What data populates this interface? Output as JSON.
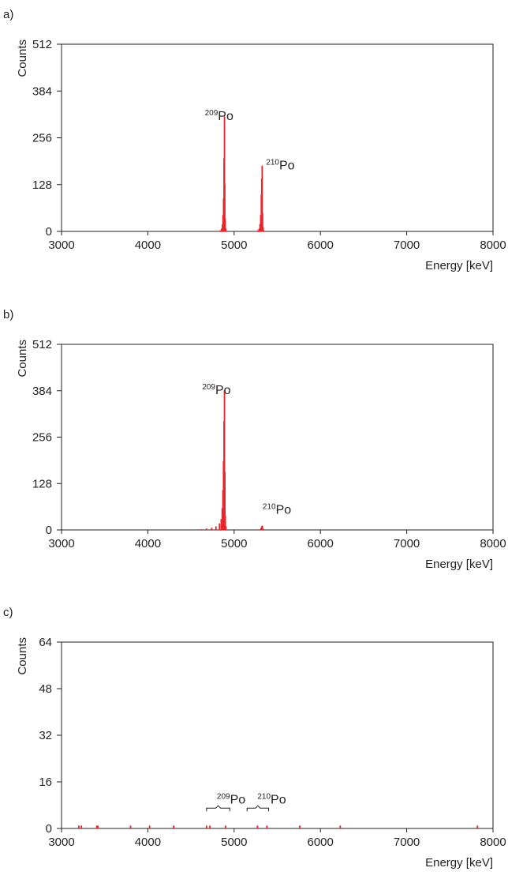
{
  "colors": {
    "peak": "#e8262b",
    "axis": "#231f20"
  },
  "chart_data": [
    {
      "panel_label": "a)",
      "type": "bar",
      "title": "",
      "xlabel": "Energy [keV]",
      "ylabel": "Counts",
      "xlim": [
        3000,
        8000
      ],
      "ylim": [
        0,
        512
      ],
      "xticks": [
        3000,
        4000,
        5000,
        6000,
        7000,
        8000
      ],
      "yticks": [
        0,
        128,
        256,
        384,
        512
      ],
      "grid": false,
      "series": [
        {
          "values": [
            [
              4840,
              3
            ],
            [
              4855,
              8
            ],
            [
              4865,
              20
            ],
            [
              4872,
              45
            ],
            [
              4878,
              90
            ],
            [
              4883,
              200
            ],
            [
              4888,
              315
            ],
            [
              4892,
              130
            ],
            [
              4897,
              35
            ],
            [
              4903,
              8
            ],
            [
              5275,
              3
            ],
            [
              5290,
              8
            ],
            [
              5300,
              20
            ],
            [
              5308,
              45
            ],
            [
              5315,
              100
            ],
            [
              5320,
              145
            ],
            [
              5325,
              180
            ],
            [
              5330,
              50
            ],
            [
              5336,
              12
            ],
            [
              5342,
              3
            ]
          ]
        }
      ],
      "annotations": [
        {
          "text": "Po",
          "mass": "209",
          "x": 4660,
          "y": 305
        },
        {
          "text": "Po",
          "mass": "210",
          "x": 5370,
          "y": 170
        }
      ]
    },
    {
      "panel_label": "b)",
      "type": "bar",
      "title": "",
      "xlabel": "Energy [keV]",
      "ylabel": "Counts",
      "xlim": [
        3000,
        8000
      ],
      "ylim": [
        0,
        512
      ],
      "xticks": [
        3000,
        4000,
        5000,
        6000,
        7000,
        8000
      ],
      "yticks": [
        0,
        128,
        256,
        384,
        512
      ],
      "grid": false,
      "series": [
        {
          "values": [
            [
              4620,
              2
            ],
            [
              4680,
              4
            ],
            [
              4740,
              6
            ],
            [
              4790,
              10
            ],
            [
              4830,
              18
            ],
            [
              4850,
              30
            ],
            [
              4862,
              60
            ],
            [
              4870,
              110
            ],
            [
              4877,
              190
            ],
            [
              4883,
              300
            ],
            [
              4888,
              385
            ],
            [
              4893,
              160
            ],
            [
              4898,
              40
            ],
            [
              4905,
              10
            ],
            [
              5310,
              5
            ],
            [
              5320,
              10
            ],
            [
              5328,
              12
            ],
            [
              5335,
              4
            ]
          ]
        }
      ],
      "annotations": [
        {
          "text": "Po",
          "mass": "209",
          "x": 4630,
          "y": 375
        },
        {
          "text": "Po",
          "mass": "210",
          "x": 5330,
          "y": 45
        }
      ]
    },
    {
      "panel_label": "c)",
      "type": "bar",
      "title": "",
      "xlabel": "Energy [keV]",
      "ylabel": "Counts",
      "xlim": [
        3000,
        8000
      ],
      "ylim": [
        0,
        64
      ],
      "xticks": [
        3000,
        4000,
        5000,
        6000,
        7000,
        8000
      ],
      "yticks": [
        0,
        16,
        32,
        48,
        64
      ],
      "grid": false,
      "series": [
        {
          "values": [
            [
              3200,
              1
            ],
            [
              3230,
              1
            ],
            [
              3410,
              1
            ],
            [
              3420,
              1
            ],
            [
              3800,
              1
            ],
            [
              4020,
              1
            ],
            [
              4300,
              1
            ],
            [
              4680,
              1
            ],
            [
              4720,
              1
            ],
            [
              4900,
              1
            ],
            [
              5270,
              1
            ],
            [
              5380,
              1
            ],
            [
              5760,
              1
            ],
            [
              6230,
              1
            ],
            [
              7820,
              1
            ]
          ]
        }
      ],
      "annotations": [
        {
          "text": "Po",
          "mass": "209",
          "x": 4800,
          "y": 8.5
        },
        {
          "text": "Po",
          "mass": "210",
          "x": 5270,
          "y": 8.5
        }
      ],
      "brackets": [
        {
          "from": 4680,
          "to": 4950
        },
        {
          "from": 5150,
          "to": 5400
        }
      ]
    }
  ]
}
